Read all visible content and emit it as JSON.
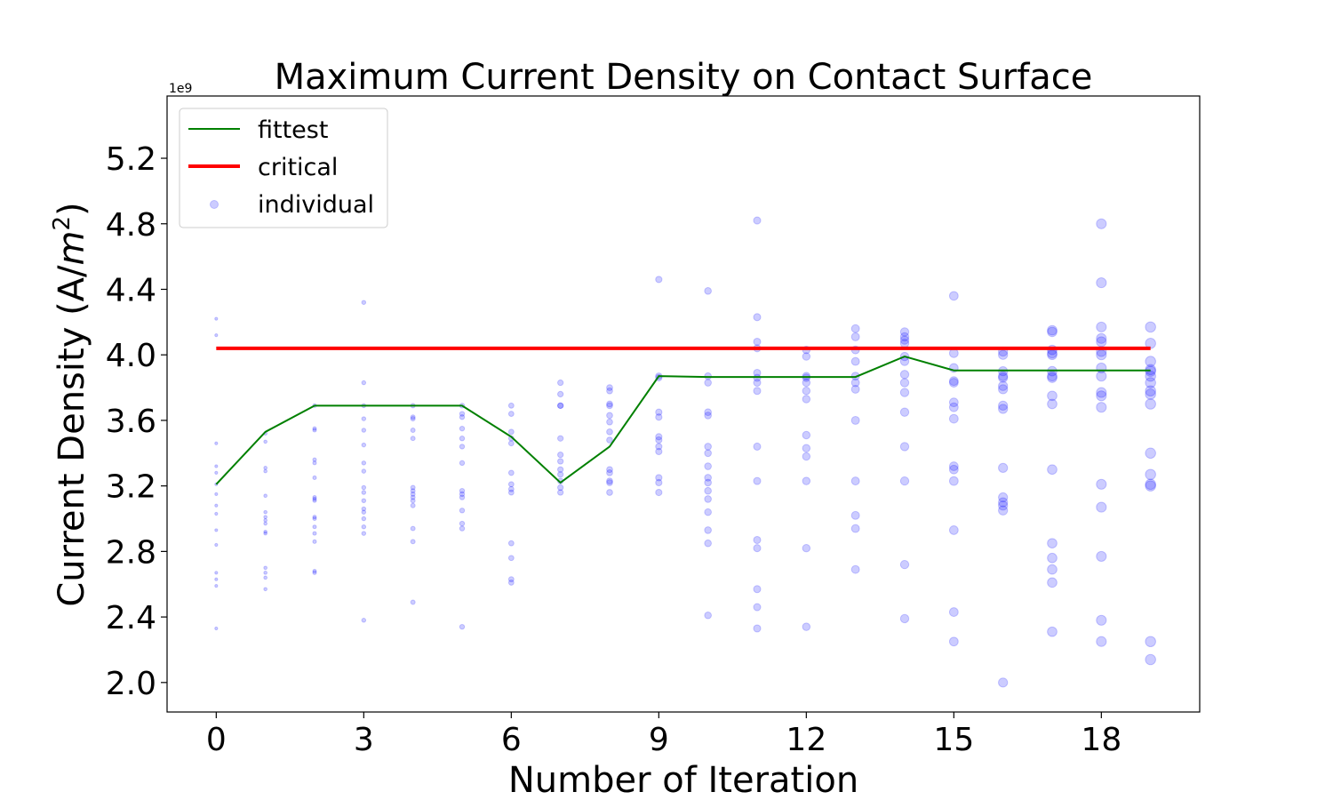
{
  "chart_data": {
    "type": "scatter",
    "title": "Maximum Current Density on Contact Surface",
    "xlabel": "Number of Iteration",
    "ylabel_main": "Current Density (A/",
    "ylabel_unit": "m",
    "ylabel_sup": "2",
    "ylabel_end": ")",
    "y_offset_label": "1e9",
    "xlim": [
      -1,
      20
    ],
    "ylim": [
      1.82,
      5.58
    ],
    "x_ticks": [
      0,
      3,
      6,
      9,
      12,
      15,
      18
    ],
    "y_ticks": [
      2.0,
      2.4,
      2.8,
      3.2,
      3.6,
      4.0,
      4.4,
      4.8,
      5.2
    ],
    "y_tick_labels": [
      "2.0",
      "2.4",
      "2.8",
      "3.2",
      "3.6",
      "4.0",
      "4.4",
      "4.8",
      "5.2"
    ],
    "grid": false,
    "legend_position": "top-left",
    "legend": [
      {
        "label": "fittest",
        "kind": "line",
        "color": "#008000"
      },
      {
        "label": "critical",
        "kind": "thick-line",
        "color": "#ff0000"
      },
      {
        "label": "individual",
        "kind": "marker",
        "color": "#0000ff"
      }
    ],
    "series": [
      {
        "name": "fittest",
        "color": "#008000",
        "x": [
          0,
          1,
          2,
          3,
          4,
          5,
          6,
          7,
          8,
          9,
          10,
          11,
          12,
          13,
          14,
          15,
          16,
          17,
          18,
          19
        ],
        "y": [
          3.21,
          3.53,
          3.69,
          3.69,
          3.69,
          3.69,
          3.5,
          3.22,
          3.44,
          3.87,
          3.865,
          3.865,
          3.865,
          3.865,
          3.99,
          3.905,
          3.905,
          3.905,
          3.905,
          3.905
        ]
      },
      {
        "name": "critical",
        "color": "#ff0000",
        "x": [
          0,
          19
        ],
        "y": [
          4.04,
          4.04
        ]
      },
      {
        "name": "individual",
        "color": "#0000ff",
        "points": [
          {
            "x": 0,
            "ys": [
              4.22,
              4.12,
              3.46,
              3.32,
              3.28,
              3.21,
              3.15,
              3.08,
              3.03,
              2.93,
              2.84,
              2.67,
              2.63,
              2.59,
              2.33
            ]
          },
          {
            "x": 1,
            "ys": [
              3.52,
              3.47,
              3.31,
              3.29,
              3.14,
              3.04,
              3.01,
              2.99,
              2.97,
              2.92,
              2.91,
              2.7,
              2.67,
              2.64,
              2.57
            ]
          },
          {
            "x": 2,
            "ys": [
              3.69,
              3.55,
              3.54,
              3.36,
              3.34,
              3.25,
              3.13,
              3.12,
              3.11,
              3.01,
              3.0,
              2.95,
              2.91,
              2.86,
              2.68,
              2.67
            ]
          },
          {
            "x": 3,
            "ys": [
              4.32,
              3.83,
              3.69,
              3.61,
              3.54,
              3.45,
              3.34,
              3.29,
              3.19,
              3.16,
              3.11,
              3.06,
              3.04,
              3.0,
              2.95,
              2.91,
              2.38
            ]
          },
          {
            "x": 4,
            "ys": [
              3.69,
              3.62,
              3.61,
              3.54,
              3.49,
              3.19,
              3.17,
              3.15,
              3.13,
              3.11,
              3.08,
              2.94,
              2.86,
              2.49
            ]
          },
          {
            "x": 5,
            "ys": [
              3.69,
              3.64,
              3.62,
              3.55,
              3.49,
              3.44,
              3.34,
              3.17,
              3.15,
              3.13,
              3.05,
              2.97,
              2.94,
              2.34
            ]
          },
          {
            "x": 6,
            "ys": [
              3.69,
              3.64,
              3.53,
              3.49,
              3.46,
              3.28,
              3.21,
              3.18,
              3.16,
              2.85,
              2.76,
              2.63,
              2.61
            ]
          },
          {
            "x": 7,
            "ys": [
              3.83,
              3.76,
              3.69,
              3.69,
              3.49,
              3.39,
              3.35,
              3.3,
              3.27,
              3.23,
              3.19,
              3.16
            ]
          },
          {
            "x": 8,
            "ys": [
              3.8,
              3.78,
              3.7,
              3.69,
              3.63,
              3.59,
              3.53,
              3.48,
              3.3,
              3.28,
              3.23,
              3.22,
              3.16
            ]
          },
          {
            "x": 9,
            "ys": [
              4.46,
              3.87,
              3.86,
              3.65,
              3.62,
              3.5,
              3.48,
              3.44,
              3.41,
              3.25,
              3.22,
              3.16
            ]
          },
          {
            "x": 10,
            "ys": [
              4.39,
              3.87,
              3.83,
              3.65,
              3.63,
              3.44,
              3.4,
              3.32,
              3.25,
              3.22,
              3.17,
              3.12,
              3.04,
              2.93,
              2.85,
              2.41
            ]
          },
          {
            "x": 11,
            "ys": [
              4.82,
              4.23,
              4.08,
              4.04,
              3.89,
              3.86,
              3.83,
              3.78,
              3.44,
              3.23,
              2.87,
              2.82,
              2.57,
              2.46,
              2.33
            ]
          },
          {
            "x": 12,
            "ys": [
              4.03,
              3.99,
              3.87,
              3.86,
              3.83,
              3.78,
              3.73,
              3.51,
              3.43,
              3.38,
              3.23,
              2.82,
              2.34
            ]
          },
          {
            "x": 13,
            "ys": [
              4.16,
              4.11,
              4.03,
              3.96,
              3.87,
              3.83,
              3.79,
              3.6,
              3.23,
              3.02,
              2.94,
              2.69
            ]
          },
          {
            "x": 14,
            "ys": [
              4.14,
              4.11,
              4.09,
              4.07,
              3.99,
              3.96,
              3.88,
              3.83,
              3.77,
              3.65,
              3.44,
              3.23,
              2.72,
              2.39
            ]
          },
          {
            "x": 15,
            "ys": [
              4.36,
              4.01,
              3.92,
              3.84,
              3.83,
              3.71,
              3.68,
              3.61,
              3.32,
              3.3,
              3.23,
              2.93,
              2.43,
              2.25
            ]
          },
          {
            "x": 16,
            "ys": [
              4.02,
              4.0,
              3.9,
              3.87,
              3.86,
              3.81,
              3.79,
              3.69,
              3.67,
              3.31,
              3.13,
              3.1,
              3.08,
              3.05,
              2.0
            ]
          },
          {
            "x": 17,
            "ys": [
              4.15,
              4.14,
              4.03,
              4.01,
              4.0,
              3.9,
              3.87,
              3.86,
              3.75,
              3.7,
              3.3,
              2.85,
              2.76,
              2.69,
              2.61,
              2.31
            ]
          },
          {
            "x": 18,
            "ys": [
              4.8,
              4.44,
              4.17,
              4.1,
              4.08,
              4.02,
              4.0,
              3.92,
              3.87,
              3.77,
              3.75,
              3.68,
              3.21,
              3.07,
              2.77,
              2.38,
              2.25
            ]
          },
          {
            "x": 19,
            "ys": [
              4.17,
              4.07,
              3.96,
              3.91,
              3.9,
              3.87,
              3.83,
              3.78,
              3.76,
              3.7,
              3.4,
              3.27,
              3.21,
              3.2,
              2.25,
              2.14
            ]
          }
        ]
      }
    ]
  }
}
